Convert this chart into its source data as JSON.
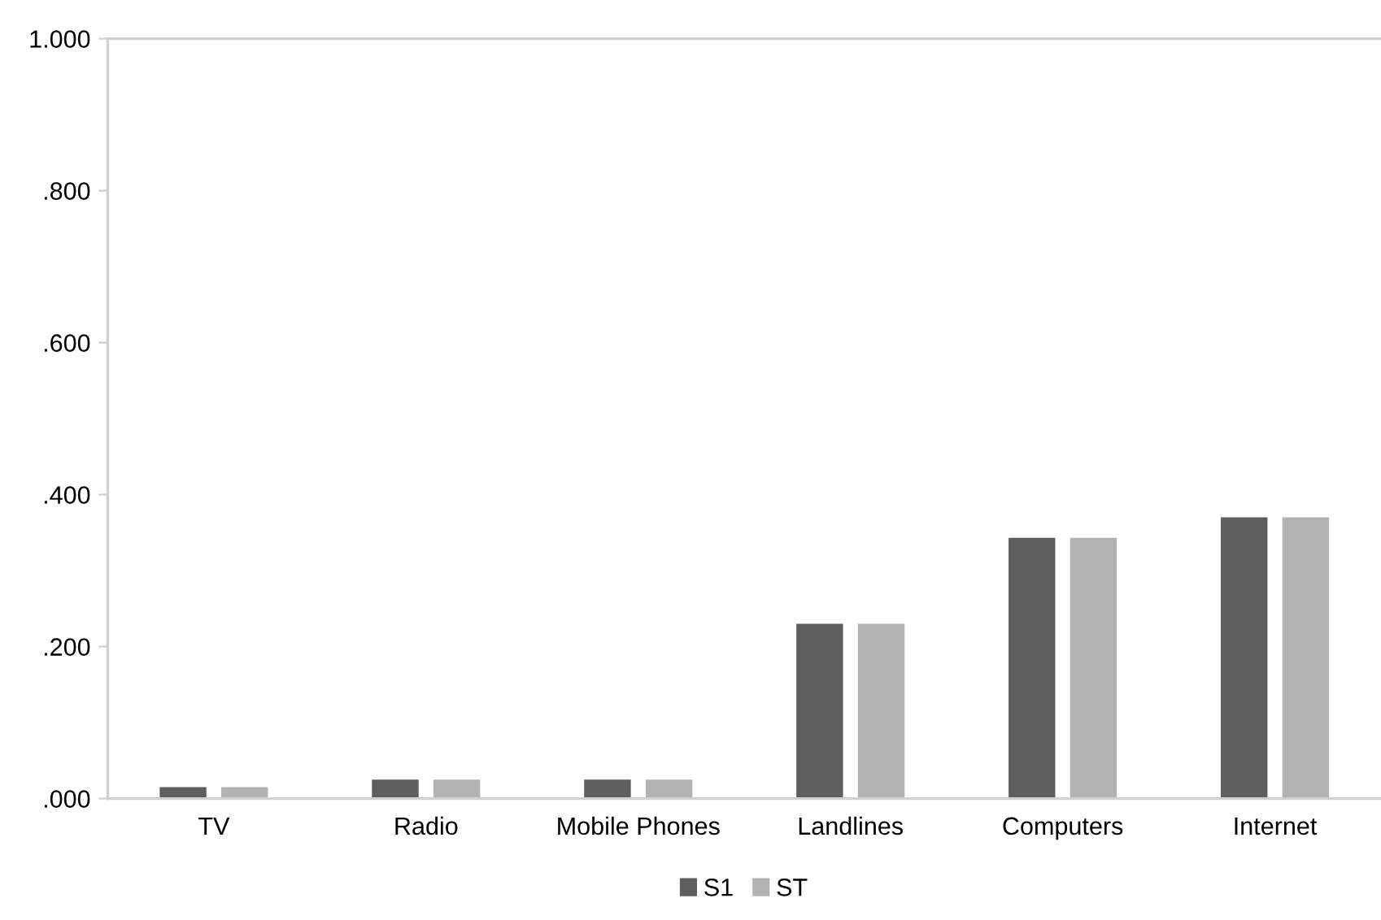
{
  "chart_data": {
    "type": "bar",
    "categories": [
      "TV",
      "Radio",
      "Mobile Phones",
      "Landlines",
      "Computers",
      "Internet"
    ],
    "series": [
      {
        "name": "S1",
        "color": "#5e5e5e",
        "values": [
          0.015,
          0.025,
          0.025,
          0.23,
          0.343,
          0.37
        ]
      },
      {
        "name": "ST",
        "color": "#b2b2b2",
        "values": [
          0.015,
          0.025,
          0.025,
          0.23,
          0.343,
          0.37
        ]
      }
    ],
    "ylim": [
      0,
      1
    ],
    "yticks": [
      {
        "value": 0,
        "label": ".000"
      },
      {
        "value": 0.2,
        "label": ".200"
      },
      {
        "value": 0.4,
        "label": ".400"
      },
      {
        "value": 0.6,
        "label": ".600"
      },
      {
        "value": 0.8,
        "label": ".800"
      },
      {
        "value": 1,
        "label": "1.000"
      }
    ],
    "grid": false,
    "legend": "bottom"
  }
}
